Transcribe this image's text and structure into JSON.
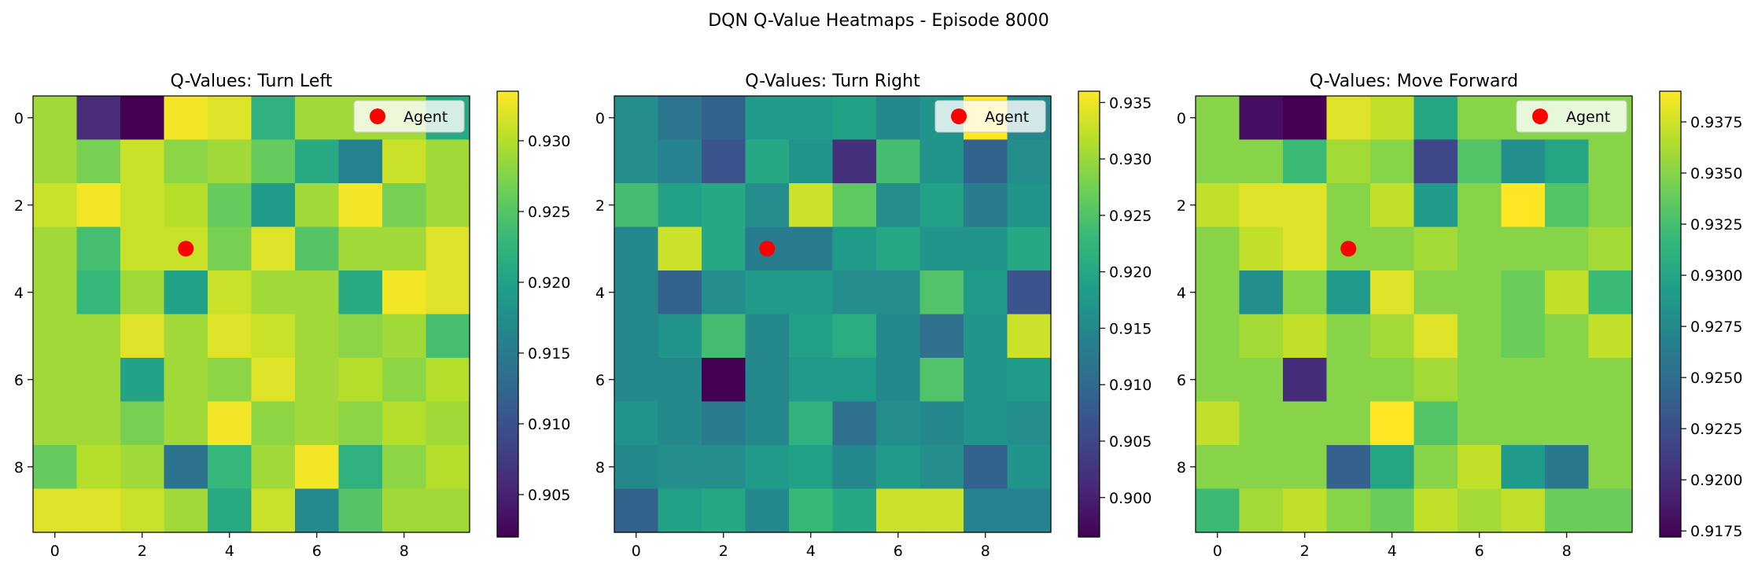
{
  "chart_data": {
    "type": "heatmap",
    "suptitle": "DQN Q-Value Heatmaps - Episode 8000",
    "legend_label": "Agent",
    "agent": {
      "x": 3,
      "y": 3
    },
    "x_ticks": [
      "0",
      "2",
      "4",
      "6",
      "8"
    ],
    "y_ticks": [
      "0",
      "2",
      "4",
      "6",
      "8"
    ],
    "colormap": [
      "#440154",
      "#482878",
      "#3e4989",
      "#31688e",
      "#26828e",
      "#1f9e89",
      "#35b779",
      "#6ece58",
      "#b5de2b",
      "#fde725"
    ],
    "agent_color": "#ff0000",
    "panels": [
      {
        "title": "Q-Values: Turn Left",
        "vmin": 0.902,
        "vmax": 0.9335,
        "colorbar_ticks": [
          "0.905",
          "0.910",
          "0.915",
          "0.920",
          "0.925",
          "0.930"
        ],
        "values": [
          [
            0.929,
            0.906,
            0.902,
            0.933,
            0.932,
            0.922,
            0.929,
            0.929,
            0.929,
            0.921
          ],
          [
            0.929,
            0.927,
            0.931,
            0.928,
            0.929,
            0.926,
            0.921,
            0.916,
            0.931,
            0.929
          ],
          [
            0.931,
            0.933,
            0.931,
            0.93,
            0.926,
            0.919,
            0.929,
            0.933,
            0.927,
            0.929
          ],
          [
            0.929,
            0.924,
            0.931,
            0.931,
            0.927,
            0.932,
            0.925,
            0.929,
            0.929,
            0.932
          ],
          [
            0.929,
            0.923,
            0.929,
            0.92,
            0.931,
            0.929,
            0.929,
            0.921,
            0.933,
            0.932
          ],
          [
            0.929,
            0.929,
            0.932,
            0.929,
            0.932,
            0.931,
            0.929,
            0.928,
            0.929,
            0.924
          ],
          [
            0.929,
            0.929,
            0.92,
            0.929,
            0.928,
            0.932,
            0.929,
            0.93,
            0.928,
            0.93
          ],
          [
            0.929,
            0.929,
            0.927,
            0.929,
            0.933,
            0.928,
            0.929,
            0.928,
            0.93,
            0.929
          ],
          [
            0.926,
            0.93,
            0.929,
            0.914,
            0.923,
            0.929,
            0.933,
            0.922,
            0.928,
            0.93
          ],
          [
            0.932,
            0.932,
            0.931,
            0.929,
            0.921,
            0.931,
            0.917,
            0.925,
            0.929,
            0.929
          ]
        ]
      },
      {
        "title": "Q-Values: Turn Right",
        "vmin": 0.8965,
        "vmax": 0.936,
        "colorbar_ticks": [
          "0.900",
          "0.905",
          "0.910",
          "0.915",
          "0.920",
          "0.925",
          "0.930",
          "0.935"
        ],
        "values": [
          [
            0.916,
            0.912,
            0.909,
            0.918,
            0.918,
            0.919,
            0.915,
            0.917,
            0.936,
            0.915
          ],
          [
            0.916,
            0.914,
            0.907,
            0.92,
            0.917,
            0.902,
            0.924,
            0.917,
            0.909,
            0.916
          ],
          [
            0.924,
            0.919,
            0.92,
            0.916,
            0.933,
            0.926,
            0.916,
            0.919,
            0.913,
            0.917
          ],
          [
            0.915,
            0.933,
            0.92,
            0.913,
            0.913,
            0.918,
            0.92,
            0.917,
            0.917,
            0.92
          ],
          [
            0.915,
            0.909,
            0.916,
            0.918,
            0.918,
            0.916,
            0.916,
            0.925,
            0.918,
            0.907
          ],
          [
            0.915,
            0.917,
            0.924,
            0.915,
            0.919,
            0.921,
            0.915,
            0.911,
            0.917,
            0.933
          ],
          [
            0.915,
            0.915,
            0.8965,
            0.915,
            0.918,
            0.918,
            0.915,
            0.925,
            0.917,
            0.918
          ],
          [
            0.917,
            0.915,
            0.913,
            0.915,
            0.922,
            0.911,
            0.916,
            0.915,
            0.917,
            0.916
          ],
          [
            0.915,
            0.916,
            0.916,
            0.918,
            0.919,
            0.915,
            0.918,
            0.916,
            0.909,
            0.917
          ],
          [
            0.909,
            0.919,
            0.92,
            0.915,
            0.923,
            0.92,
            0.933,
            0.933,
            0.914,
            0.914
          ]
        ]
      },
      {
        "title": "Q-Values: Move Forward",
        "vmin": 0.9172,
        "vmax": 0.939,
        "colorbar_ticks": [
          "0.9175",
          "0.9200",
          "0.9225",
          "0.9250",
          "0.9275",
          "0.9300",
          "0.9325",
          "0.9350",
          "0.9375"
        ],
        "values": [
          [
            0.935,
            0.918,
            0.917,
            0.938,
            0.937,
            0.93,
            0.935,
            0.935,
            0.935,
            0.935
          ],
          [
            0.935,
            0.935,
            0.932,
            0.936,
            0.935,
            0.922,
            0.933,
            0.928,
            0.93,
            0.935
          ],
          [
            0.937,
            0.938,
            0.938,
            0.935,
            0.937,
            0.929,
            0.935,
            0.939,
            0.933,
            0.935
          ],
          [
            0.935,
            0.937,
            0.938,
            0.935,
            0.935,
            0.936,
            0.935,
            0.935,
            0.935,
            0.936
          ],
          [
            0.935,
            0.928,
            0.935,
            0.929,
            0.938,
            0.935,
            0.935,
            0.934,
            0.937,
            0.932
          ],
          [
            0.935,
            0.936,
            0.937,
            0.935,
            0.936,
            0.938,
            0.935,
            0.934,
            0.935,
            0.937
          ],
          [
            0.935,
            0.935,
            0.92,
            0.935,
            0.935,
            0.936,
            0.935,
            0.935,
            0.935,
            0.935
          ],
          [
            0.937,
            0.935,
            0.935,
            0.935,
            0.939,
            0.933,
            0.935,
            0.935,
            0.935,
            0.935
          ],
          [
            0.935,
            0.935,
            0.935,
            0.924,
            0.93,
            0.935,
            0.937,
            0.929,
            0.926,
            0.935
          ],
          [
            0.932,
            0.936,
            0.937,
            0.935,
            0.934,
            0.937,
            0.936,
            0.937,
            0.934,
            0.934
          ]
        ]
      }
    ]
  }
}
